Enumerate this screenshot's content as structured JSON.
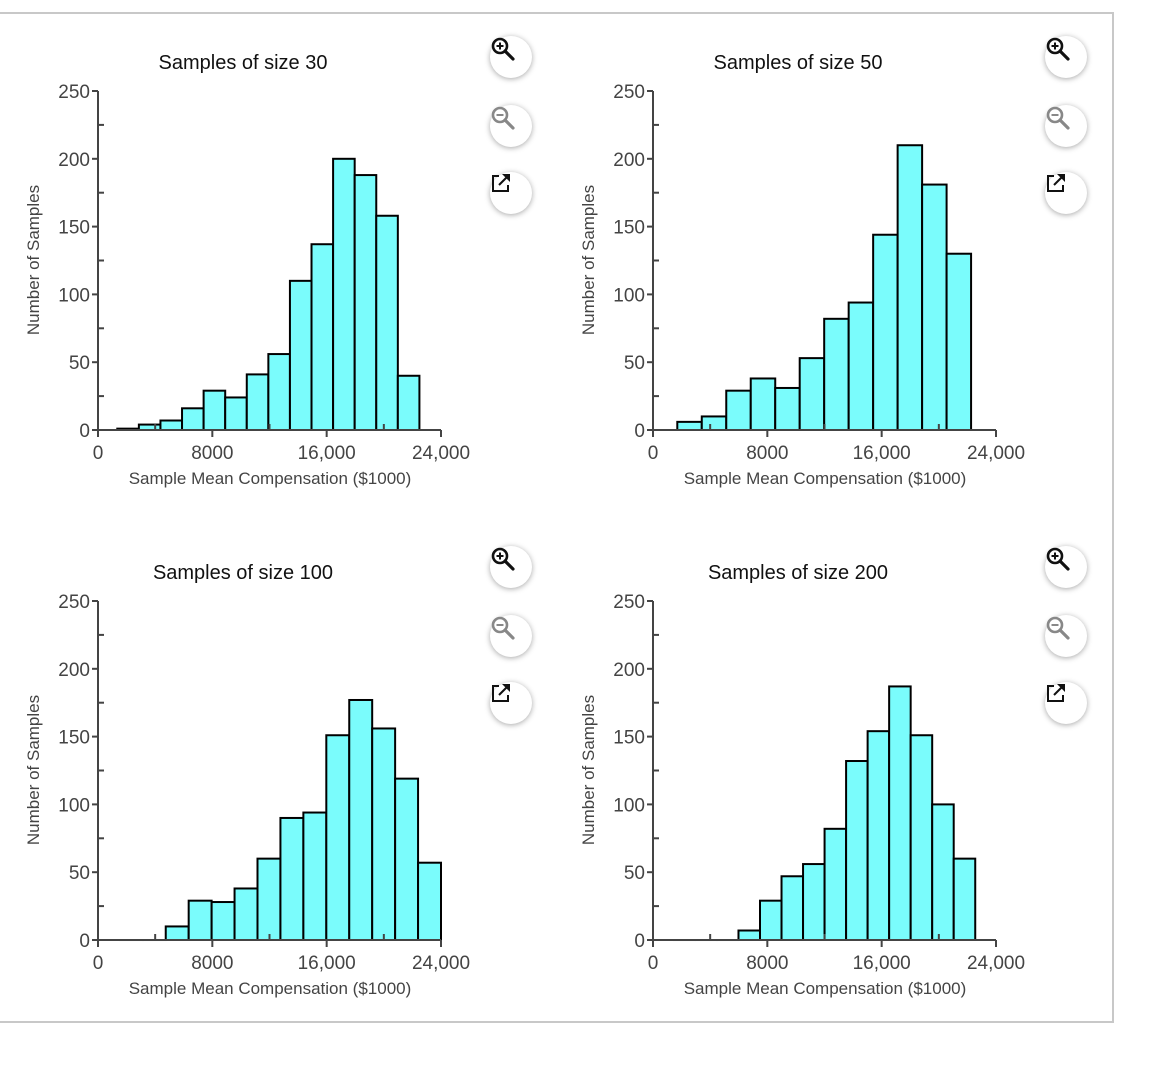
{
  "colors": {
    "bar_fill": "#7afcfc",
    "bar_stroke": "#000000",
    "axis": "#444444"
  },
  "buttons": {
    "zoom_in_icon": "zoom-in-icon",
    "zoom_out_icon": "zoom-out-icon",
    "popout_icon": "external-link-icon"
  },
  "chart_data": [
    {
      "type": "bar",
      "title": "Samples of size 30",
      "xlabel": "Sample Mean Compensation ($1000)",
      "ylabel": "Number of Samples",
      "xlim": [
        0,
        24000
      ],
      "ylim": [
        0,
        250
      ],
      "xticks": [
        0,
        8000,
        16000,
        24000
      ],
      "xtick_labels": [
        "0",
        "8000",
        "16,000",
        "24,000"
      ],
      "yticks": [
        0,
        50,
        100,
        150,
        200,
        250
      ],
      "ytick_labels": [
        "0",
        "50",
        "100",
        "150",
        "200",
        "250"
      ],
      "bin_start": 1350,
      "bin_width": 1510,
      "values": [
        1,
        4,
        7,
        16,
        29,
        24,
        41,
        56,
        110,
        137,
        200,
        188,
        158,
        40
      ]
    },
    {
      "type": "bar",
      "title": "Samples of size 50",
      "xlabel": "Sample Mean Compensation ($1000)",
      "ylabel": "Number of Samples",
      "xlim": [
        0,
        24000
      ],
      "ylim": [
        0,
        250
      ],
      "xticks": [
        0,
        8000,
        16000,
        24000
      ],
      "xtick_labels": [
        "0",
        "8000",
        "16,000",
        "24,000"
      ],
      "yticks": [
        0,
        50,
        100,
        150,
        200,
        250
      ],
      "ytick_labels": [
        "0",
        "50",
        "100",
        "150",
        "200",
        "250"
      ],
      "bin_start": 1700,
      "bin_width": 1713,
      "values": [
        6,
        10,
        29,
        38,
        31,
        53,
        82,
        94,
        144,
        210,
        181,
        130
      ]
    },
    {
      "type": "bar",
      "title": "Samples of size 100",
      "xlabel": "Sample Mean Compensation ($1000)",
      "ylabel": "Number of Samples",
      "xlim": [
        0,
        24000
      ],
      "ylim": [
        0,
        250
      ],
      "xticks": [
        0,
        8000,
        16000,
        24000
      ],
      "xtick_labels": [
        "0",
        "8000",
        "16,000",
        "24,000"
      ],
      "yticks": [
        0,
        50,
        100,
        150,
        200,
        250
      ],
      "ytick_labels": [
        "0",
        "50",
        "100",
        "150",
        "200",
        "250"
      ],
      "bin_start": 1530,
      "bin_width": 1605,
      "values": [
        0,
        0,
        10,
        29,
        28,
        38,
        60,
        90,
        94,
        151,
        177,
        156,
        119,
        57
      ]
    },
    {
      "type": "bar",
      "title": "Samples of size 200",
      "xlabel": "Sample Mean Compensation ($1000)",
      "ylabel": "Number of Samples",
      "xlim": [
        0,
        24000
      ],
      "ylim": [
        0,
        250
      ],
      "xticks": [
        0,
        8000,
        16000,
        24000
      ],
      "xtick_labels": [
        "0",
        "8000",
        "16,000",
        "24,000"
      ],
      "yticks": [
        0,
        50,
        100,
        150,
        200,
        250
      ],
      "ytick_labels": [
        "0",
        "50",
        "100",
        "150",
        "200",
        "250"
      ],
      "bin_start": 1463,
      "bin_width": 1506,
      "values": [
        0,
        0,
        0,
        7,
        29,
        47,
        56,
        82,
        132,
        154,
        187,
        151,
        100,
        60
      ]
    }
  ]
}
